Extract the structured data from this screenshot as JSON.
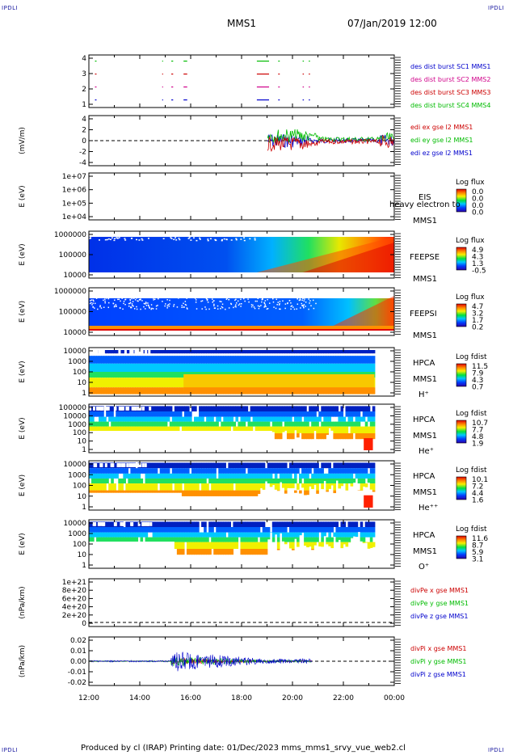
{
  "corners": {
    "tl": "IPDLI",
    "tr": "IPDLI",
    "bl": "IPDLI",
    "br": "IPDLI"
  },
  "header": {
    "spacecraft": "MMS1",
    "datetime": "07/Jan/2019 12:00"
  },
  "footer": {
    "text": "Produced by cl (IRAP)    Printing date: 01/Dec/2023    mms_mms1_srvy_vue_web2.cl"
  },
  "colors": {
    "c1": "#0000cc",
    "c2": "#d0008a",
    "c3": "#cc0000",
    "c4": "#00bb00",
    "x": "#cc0000",
    "y": "#00bb00",
    "z": "#0000cc"
  },
  "chart_data": {
    "type": "heatmap",
    "x_ticks": [
      "12:00",
      "14:00",
      "16:00",
      "18:00",
      "20:00",
      "22:00",
      "00:00"
    ],
    "panels": [
      {
        "id": "burst",
        "ylabel": "",
        "ytick_labels": [
          "4",
          "3",
          "2",
          "1"
        ],
        "legend": [
          {
            "label": "des dist burst SC1 MMS1",
            "color": "#0000cc"
          },
          {
            "label": "des dist burst SC2 MMS2",
            "color": "#d0008a"
          },
          {
            "label": "des dist burst SC3 MMS3",
            "color": "#cc0000"
          },
          {
            "label": "des dist burst SC4 MMS4",
            "color": "#00bb00"
          }
        ]
      },
      {
        "id": "edi",
        "ylabel": "(mV/m)",
        "ytick_labels": [
          "4",
          "2",
          "0",
          "-2",
          "-4"
        ],
        "legend": [
          {
            "label": "edi ex gse l2 MMS1",
            "color": "#cc0000"
          },
          {
            "label": "edi ey gse l2 MMS1",
            "color": "#00bb00"
          },
          {
            "label": "edi ez gse l2 MMS1",
            "color": "#0000cc"
          }
        ]
      },
      {
        "id": "eis",
        "ylabel": "E (eV)",
        "ytick_labels": [
          "1e+07",
          "1e+06",
          "1e+05",
          "1e+04"
        ],
        "side": [
          "EIS",
          "heavy electron to",
          "MMS1"
        ],
        "colorbar": {
          "title": "Log flux",
          "ticks": [
            "0.0",
            "0.0",
            "0.0",
            "0.0"
          ]
        }
      },
      {
        "id": "feepse",
        "ylabel": "E (eV)",
        "ytick_labels": [
          "1000000",
          "100000",
          "10000"
        ],
        "side": [
          "FEEPSE",
          "MMS1"
        ],
        "colorbar": {
          "title": "Log flux",
          "ticks": [
            "4.9",
            "4.3",
            "1.3",
            "-0.5"
          ]
        }
      },
      {
        "id": "feepsi",
        "ylabel": "E (eV)",
        "ytick_labels": [
          "1000000",
          "100000",
          "10000"
        ],
        "side": [
          "FEEPSI",
          "MMS1"
        ],
        "colorbar": {
          "title": "Log flux",
          "ticks": [
            "4.7",
            "3.2",
            "1.7",
            "0.2"
          ]
        }
      },
      {
        "id": "hpca_h",
        "ylabel": "E (eV)",
        "ytick_labels": [
          "10000",
          "1000",
          "100",
          "10",
          "1"
        ],
        "side": [
          "HPCA",
          "MMS1",
          "H⁺"
        ],
        "colorbar": {
          "title": "Log fdist",
          "ticks": [
            "11.5",
            "7.9",
            "4.3",
            "0.7"
          ]
        }
      },
      {
        "id": "hpca_he",
        "ylabel": "E (eV)",
        "ytick_labels": [
          "100000",
          "10000",
          "1000",
          "100",
          "10",
          "1"
        ],
        "side": [
          "HPCA",
          "MMS1",
          "He⁺"
        ],
        "colorbar": {
          "title": "Log fdist",
          "ticks": [
            "10.7",
            "7.7",
            "4.8",
            "1.9"
          ]
        }
      },
      {
        "id": "hpca_hepp",
        "ylabel": "E (eV)",
        "ytick_labels": [
          "10000",
          "1000",
          "100",
          "10",
          "1"
        ],
        "side": [
          "HPCA",
          "MMS1",
          "He⁺⁺"
        ],
        "colorbar": {
          "title": "Log fdist",
          "ticks": [
            "10.1",
            "7.2",
            "4.4",
            "1.6"
          ]
        }
      },
      {
        "id": "hpca_o",
        "ylabel": "E (eV)",
        "ytick_labels": [
          "10000",
          "1000",
          "100",
          "10",
          "1"
        ],
        "side": [
          "HPCA",
          "MMS1",
          "O⁺"
        ],
        "colorbar": {
          "title": "Log fdist",
          "ticks": [
            "11.6",
            "8.7",
            "5.9",
            "3.1"
          ]
        }
      },
      {
        "id": "divpe",
        "ylabel": "(nPa/km)",
        "ytick_labels": [
          "1e+21",
          "8e+20",
          "6e+20",
          "4e+20",
          "2e+20",
          "0"
        ],
        "legend": [
          {
            "label": "divPe x gse MMS1",
            "color": "#cc0000"
          },
          {
            "label": "divPe y gse MMS1",
            "color": "#00bb00"
          },
          {
            "label": "divPe z gse MMS1",
            "color": "#0000cc"
          }
        ]
      },
      {
        "id": "divpi",
        "ylabel": "(nPa/km)",
        "ytick_labels": [
          "0.02",
          "0.01",
          "0.00",
          "-0.01",
          "-0.02"
        ],
        "legend": [
          {
            "label": "divPi x gse MMS1",
            "color": "#cc0000"
          },
          {
            "label": "divPi y gse MMS1",
            "color": "#00bb00"
          },
          {
            "label": "divPi z gse MMS1",
            "color": "#0000cc"
          }
        ]
      }
    ]
  }
}
